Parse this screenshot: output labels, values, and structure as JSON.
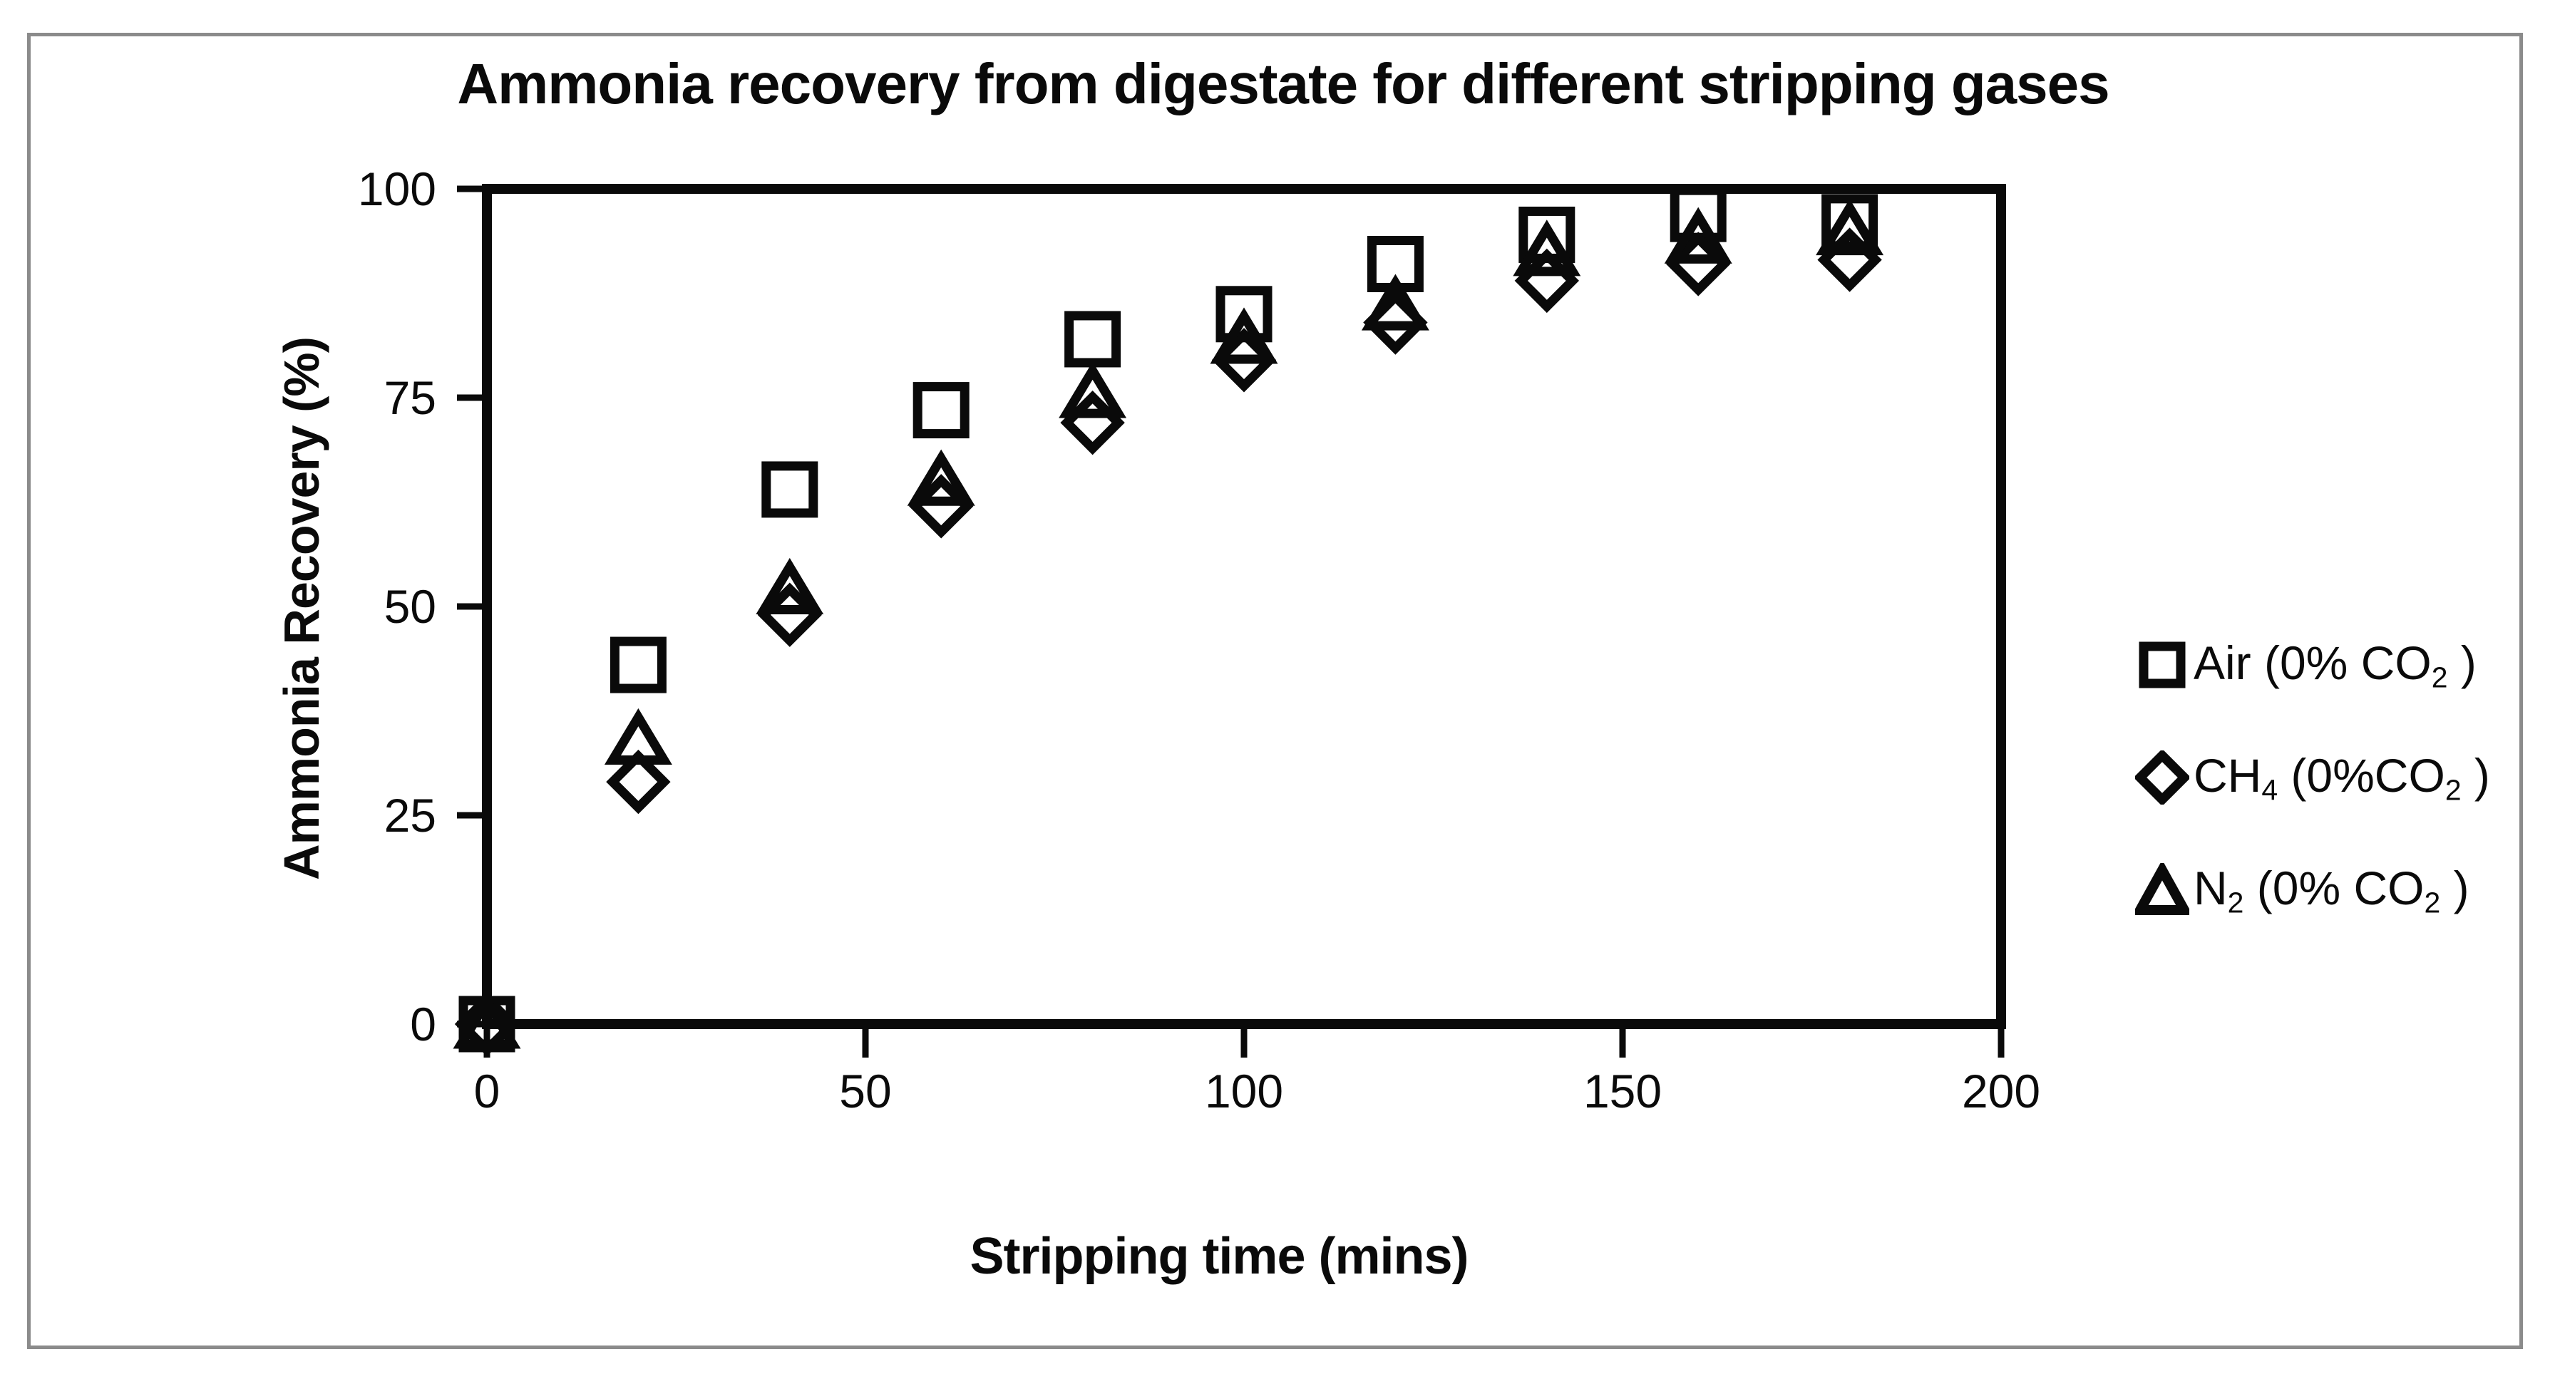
{
  "figure": {
    "title": "Ammonia recovery from digestate for different stripping gases",
    "x_axis_title": "Stripping time (mins)",
    "y_axis_title": "Ammonia Recovery (%)"
  },
  "chart_data": {
    "type": "scatter",
    "title": "Ammonia recovery from digestate for different stripping gases",
    "xlabel": "Stripping time (mins)",
    "ylabel": "Ammonia Recovery (%)",
    "xlim": [
      0,
      200
    ],
    "ylim": [
      0,
      100
    ],
    "grid": false,
    "legend_position": "right-outside",
    "marker_color": "#000000",
    "x": [
      0,
      20,
      40,
      60,
      80,
      100,
      120,
      140,
      160,
      180
    ],
    "series": [
      {
        "name": "Air (0% CO2 )",
        "marker": "square",
        "values": [
          0,
          43,
          64,
          73.5,
          82,
          85,
          91,
          94.5,
          97,
          96
        ]
      },
      {
        "name": "CH4 (0%CO2 )",
        "marker": "diamond",
        "values": [
          0,
          29,
          49,
          62,
          72,
          79.5,
          84,
          89,
          91,
          91.5
        ]
      },
      {
        "name": "N2 (0% CO2 )",
        "marker": "triangle",
        "values": [
          0,
          34,
          52,
          65,
          75.5,
          82,
          86,
          92.5,
          94,
          95
        ]
      }
    ],
    "xtick_labels": [
      "0",
      "50",
      "100",
      "150",
      "200"
    ],
    "ytick_labels": [
      "0",
      "25",
      "50",
      "75",
      "100"
    ]
  },
  "legend": {
    "items": [
      {
        "marker": "square-icon",
        "parts": {
          "p0": "Air (0% CO",
          "p1": "2",
          "p2": " )"
        }
      },
      {
        "marker": "diamond-icon",
        "parts": {
          "p0": "CH",
          "p1": "4",
          "p2": " (0%CO",
          "p3": "2",
          "p4": " )"
        }
      },
      {
        "marker": "triangle-icon",
        "parts": {
          "p0": "N",
          "p1": "2",
          "p2": " (0% CO",
          "p3": "2",
          "p4": " )"
        }
      }
    ]
  }
}
